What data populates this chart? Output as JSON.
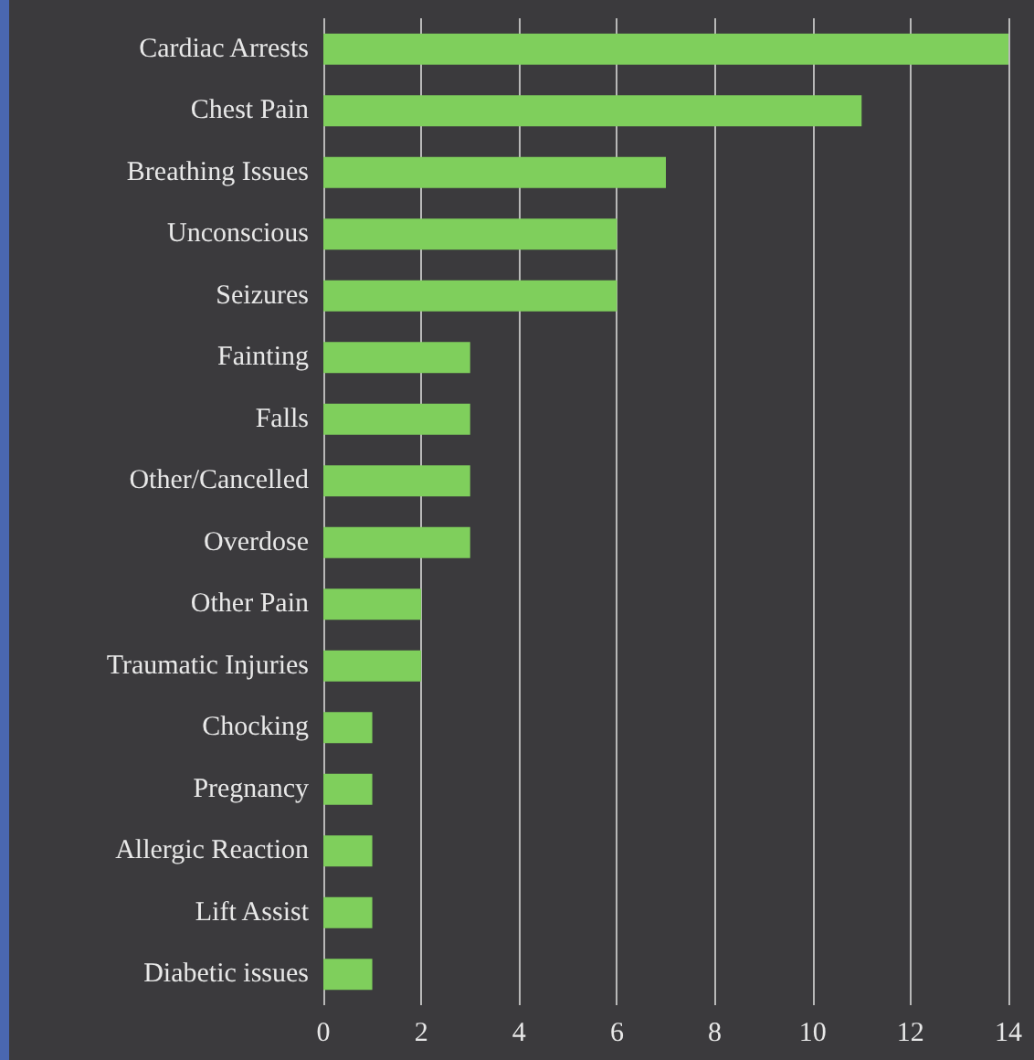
{
  "chart_data": {
    "type": "bar",
    "orientation": "horizontal",
    "categories": [
      "Cardiac Arrests",
      "Chest Pain",
      "Breathing Issues",
      "Unconscious",
      "Seizures",
      "Fainting",
      "Falls",
      "Other/Cancelled",
      "Overdose",
      "Other Pain",
      "Traumatic Injuries",
      "Chocking",
      "Pregnancy",
      "Allergic Reaction",
      "Lift Assist",
      "Diabetic issues"
    ],
    "values": [
      14,
      11,
      7,
      6,
      6,
      3,
      3,
      3,
      3,
      2,
      2,
      1,
      1,
      1,
      1,
      1
    ],
    "color": "#7fcf5c",
    "xlim": [
      0,
      14
    ],
    "xticks": [
      0,
      2,
      4,
      6,
      8,
      10,
      12,
      14
    ],
    "grid": "x"
  }
}
